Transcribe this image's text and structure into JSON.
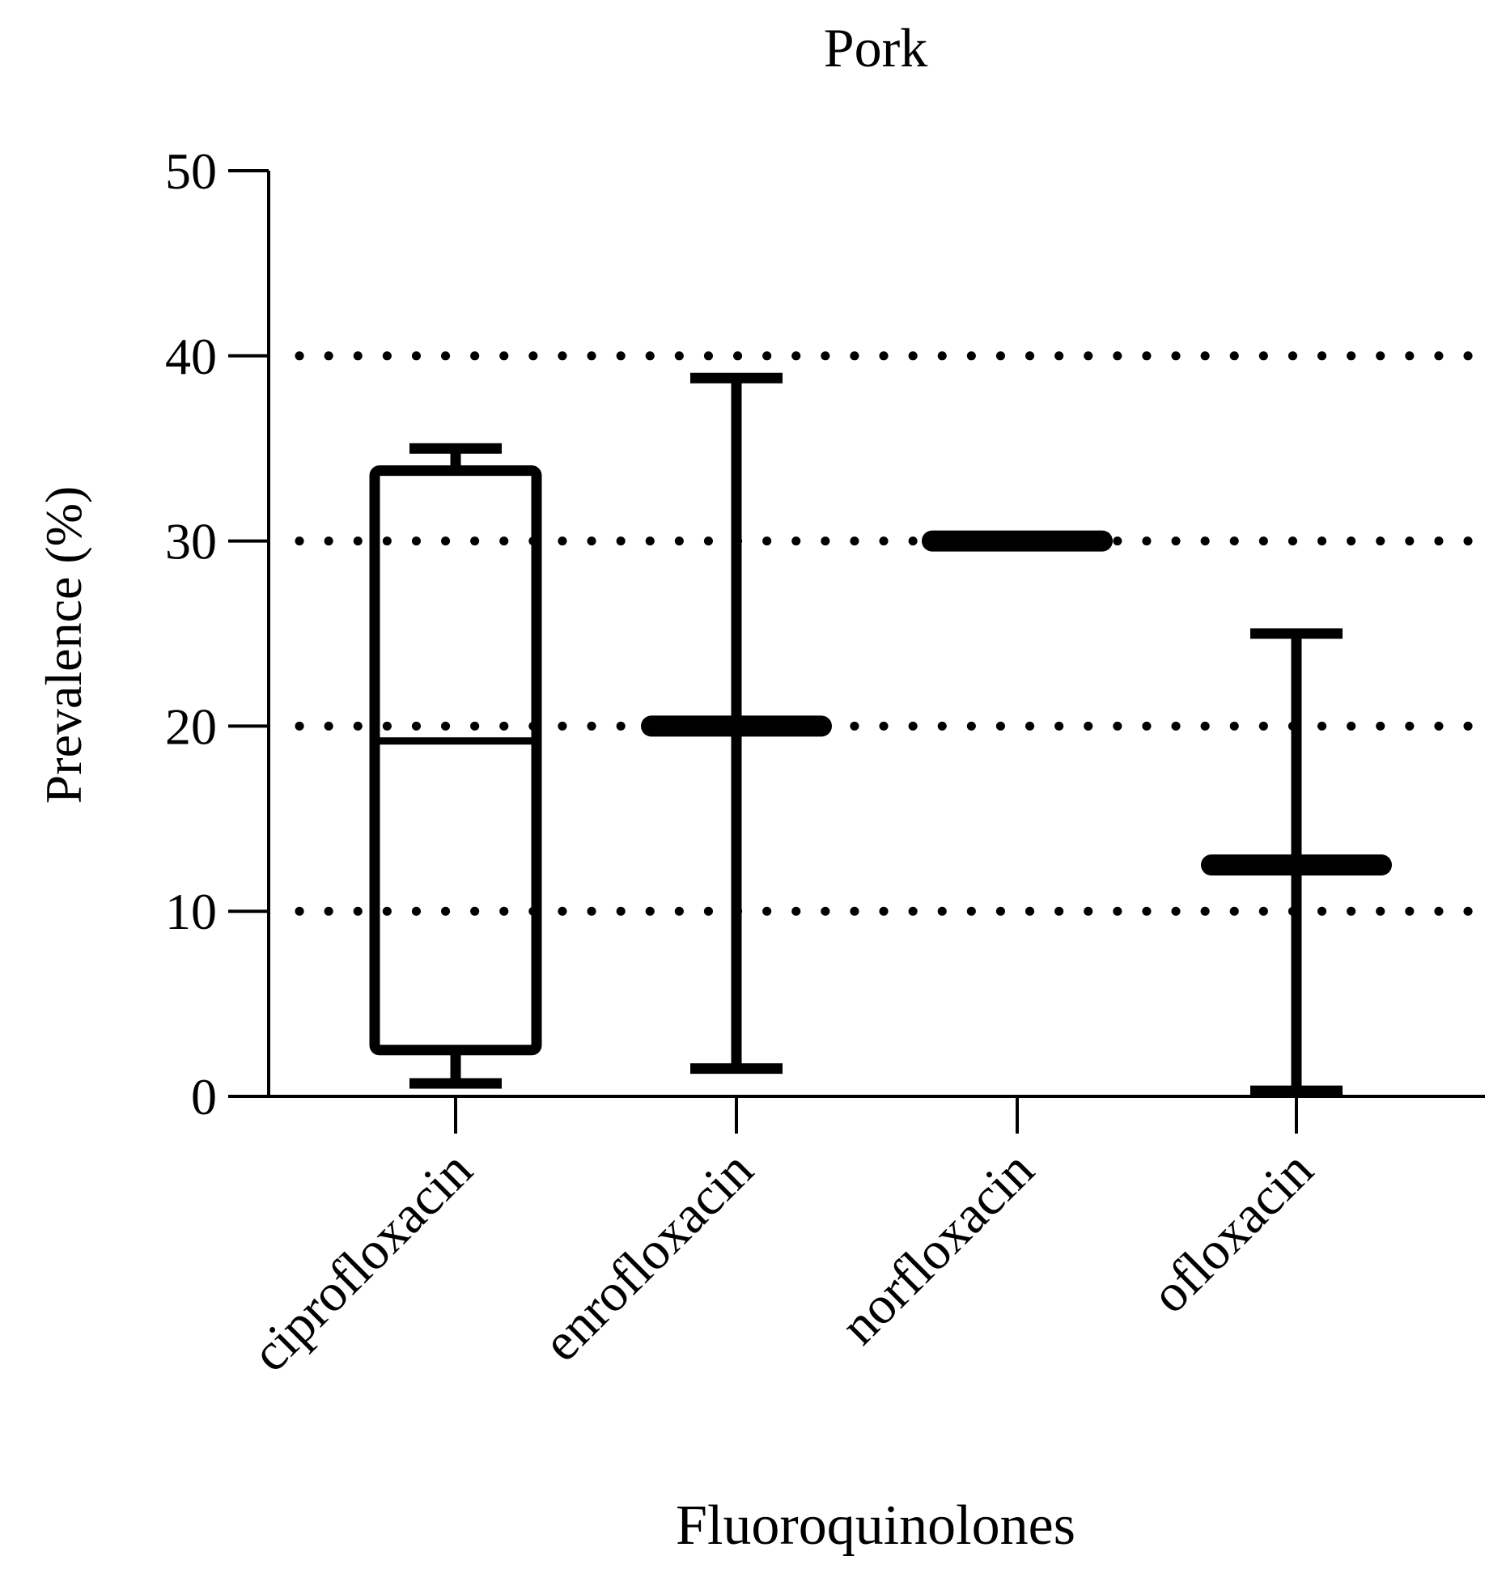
{
  "chart_data": {
    "type": "box",
    "title": "Pork",
    "xlabel": "Fluoroquinolones",
    "ylabel": "Prevalence (%)",
    "ylim": [
      0,
      50
    ],
    "yticks": [
      0,
      10,
      20,
      30,
      40,
      50
    ],
    "grid": {
      "y": true,
      "style": "dotted",
      "values": [
        10,
        20,
        30,
        40
      ]
    },
    "categories": [
      "ciprofloxacin",
      "enrofloxacin",
      "norfloxacin",
      "ofloxacin"
    ],
    "boxes": [
      {
        "category": "ciprofloxacin",
        "min": 0.7,
        "q1": 2.5,
        "median": 19.2,
        "q3": 33.8,
        "max": 35.0
      },
      {
        "category": "enrofloxacin",
        "min": 1.5,
        "q1": 20.0,
        "median": 20.0,
        "q3": 20.0,
        "max": 38.8
      },
      {
        "category": "norfloxacin",
        "min": 30.0,
        "q1": 30.0,
        "median": 30.0,
        "q3": 30.0,
        "max": 30.0
      },
      {
        "category": "ofloxacin",
        "min": 0.3,
        "q1": 12.5,
        "median": 12.5,
        "q3": 12.5,
        "max": 25.0
      }
    ],
    "colors": {
      "stroke": "#000000",
      "background": "#ffffff"
    }
  }
}
